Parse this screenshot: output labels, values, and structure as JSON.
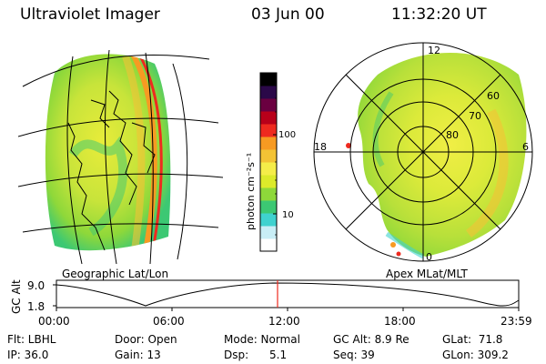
{
  "header": {
    "title": "Ultraviolet Imager",
    "date": "03 Jun 00",
    "time": "11:32:20 UT"
  },
  "left_panel": {
    "caption": "Geographic Lat/Lon"
  },
  "right_panel": {
    "caption": "Apex MLat/MLT",
    "mlt_labels": [
      "12",
      "18",
      "6",
      "0"
    ],
    "lat_labels": [
      "60",
      "70",
      "80"
    ]
  },
  "colorbar": {
    "unit_label": "photon cm⁻²s⁻¹",
    "ticks": [
      "100",
      "10"
    ],
    "colors": [
      "#ffffff",
      "#c8eef6",
      "#3fd2cf",
      "#3cc873",
      "#8ed83a",
      "#dcea2a",
      "#f5ed49",
      "#f3c335",
      "#f79a22",
      "#ee2a1f",
      "#b8001a",
      "#6a0040",
      "#2a0848",
      "#000000"
    ]
  },
  "timeline": {
    "axis_title": "GC Alt",
    "y_ticks": [
      "9.0",
      "1.8"
    ],
    "x_ticks": [
      "00:00",
      "06:00",
      "12:00",
      "18:00",
      "23:59"
    ],
    "marker_time": "11:32:20"
  },
  "info": {
    "col1": [
      "Flt: LBHL",
      "IP: 36.0"
    ],
    "col2": [
      "Door: Open",
      "Gain: 13"
    ],
    "col3": [
      "Mode: Normal",
      "Dsp:      5.1"
    ],
    "col4": [
      "GC Alt: 8.9 Re",
      "Seq: 39"
    ],
    "col5": [
      "GLat:  71.8",
      "GLon: 309.2"
    ]
  }
}
